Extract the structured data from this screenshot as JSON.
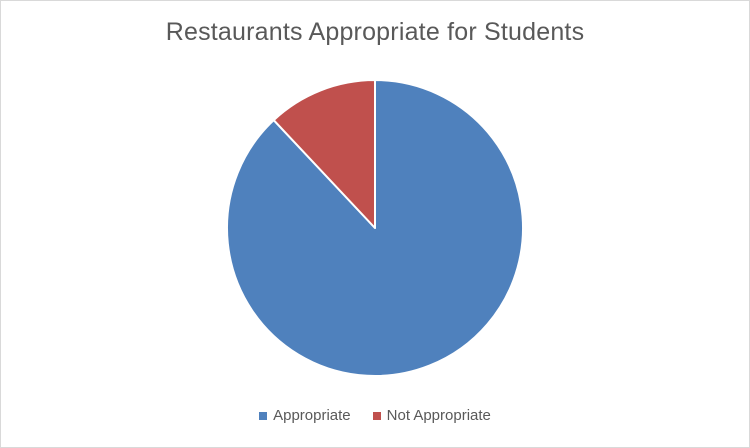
{
  "chart_data": {
    "type": "pie",
    "title": "Restaurants Appropriate for Students",
    "categories": [
      "Appropriate",
      "Not Appropriate"
    ],
    "values": [
      88,
      12
    ],
    "colors": [
      "#4f81bd",
      "#c0504d"
    ],
    "start_angle_deg": 0,
    "direction": "clockwise",
    "legend_position": "bottom"
  }
}
